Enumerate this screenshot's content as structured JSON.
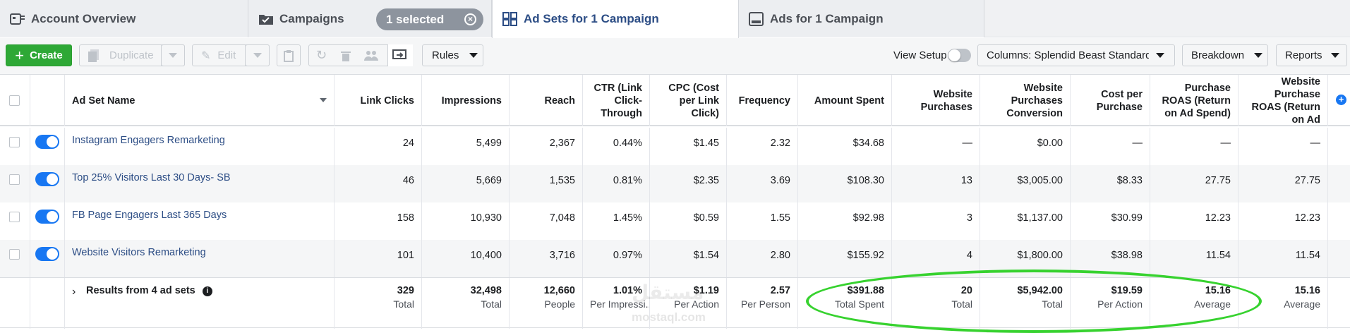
{
  "tabs": [
    {
      "label": "Account Overview",
      "icon": "account-overview-icon"
    },
    {
      "label": "Campaigns",
      "icon": "folder-check-icon"
    },
    {
      "label": "Ad Sets for 1 Campaign",
      "icon": "grid-icon"
    },
    {
      "label": "Ads for 1 Campaign",
      "icon": "ad-icon"
    }
  ],
  "selected_pill": "1 selected",
  "toolbar": {
    "create": "Create",
    "duplicate": "Duplicate",
    "edit": "Edit",
    "rules": "Rules",
    "view_setup": "View Setup",
    "columns": "Columns: Splendid Beast Standard C",
    "breakdown": "Breakdown",
    "reports": "Reports"
  },
  "table": {
    "headers": {
      "name": "Ad Set Name",
      "link_clicks": "Link Clicks",
      "impressions": "Impressions",
      "reach": "Reach",
      "ctr": "CTR (Link Click-Through",
      "cpc": "CPC (Cost per Link Click)",
      "frequency": "Frequency",
      "amount_spent": "Amount Spent",
      "website_purchases": "Website Purchases",
      "wp_conversion": "Website Purchases Conversion",
      "cost_per_purchase": "Cost per Purchase",
      "purchase_roas": "Purchase ROAS (Return on Ad Spend)",
      "website_purchase_roas": "Website Purchase ROAS (Return on Ad"
    },
    "rows": [
      {
        "name": "Instagram Engagers Remarketing",
        "link_clicks": "24",
        "impressions": "5,499",
        "reach": "2,367",
        "ctr": "0.44%",
        "cpc": "$1.45",
        "frequency": "2.32",
        "amount_spent": "$34.68",
        "website_purchases": "—",
        "wp_conversion": "$0.00",
        "cost_per_purchase": "—",
        "purchase_roas": "—",
        "website_purchase_roas": "—"
      },
      {
        "name": "Top 25% Visitors Last 30 Days- SB",
        "link_clicks": "46",
        "impressions": "5,669",
        "reach": "1,535",
        "ctr": "0.81%",
        "cpc": "$2.35",
        "frequency": "3.69",
        "amount_spent": "$108.30",
        "website_purchases": "13",
        "wp_conversion": "$3,005.00",
        "cost_per_purchase": "$8.33",
        "purchase_roas": "27.75",
        "website_purchase_roas": "27.75"
      },
      {
        "name": "FB Page Engagers Last 365 Days",
        "link_clicks": "158",
        "impressions": "10,930",
        "reach": "7,048",
        "ctr": "1.45%",
        "cpc": "$0.59",
        "frequency": "1.55",
        "amount_spent": "$92.98",
        "website_purchases": "3",
        "wp_conversion": "$1,137.00",
        "cost_per_purchase": "$30.99",
        "purchase_roas": "12.23",
        "website_purchase_roas": "12.23"
      },
      {
        "name": "Website Visitors Remarketing",
        "link_clicks": "101",
        "impressions": "10,400",
        "reach": "3,716",
        "ctr": "0.97%",
        "cpc": "$1.54",
        "frequency": "2.80",
        "amount_spent": "$155.92",
        "website_purchases": "4",
        "wp_conversion": "$1,800.00",
        "cost_per_purchase": "$38.98",
        "purchase_roas": "11.54",
        "website_purchase_roas": "11.54"
      }
    ],
    "totals": {
      "label": "Results from 4 ad sets",
      "link_clicks": {
        "v": "329",
        "s": "Total"
      },
      "impressions": {
        "v": "32,498",
        "s": "Total"
      },
      "reach": {
        "v": "12,660",
        "s": "People"
      },
      "ctr": {
        "v": "1.01%",
        "s": "Per Impressi..."
      },
      "cpc": {
        "v": "$1.19",
        "s": "Per Action"
      },
      "frequency": {
        "v": "2.57",
        "s": "Per Person"
      },
      "amount_spent": {
        "v": "$391.88",
        "s": "Total Spent"
      },
      "website_purchases": {
        "v": "20",
        "s": "Total"
      },
      "wp_conversion": {
        "v": "$5,942.00",
        "s": "Total"
      },
      "cost_per_purchase": {
        "v": "$19.59",
        "s": "Per Action"
      },
      "purchase_roas": {
        "v": "15.16",
        "s": "Average"
      },
      "website_purchase_roas": {
        "v": "15.16",
        "s": "Average"
      }
    }
  },
  "watermark": {
    "arabic": "مستقل",
    "latin": "mostaql.com"
  },
  "colors": {
    "brand_blue": "#1877f2",
    "create_green": "#2ea836",
    "highlight_green": "#37d22f",
    "link_blue": "#2c4d85"
  }
}
